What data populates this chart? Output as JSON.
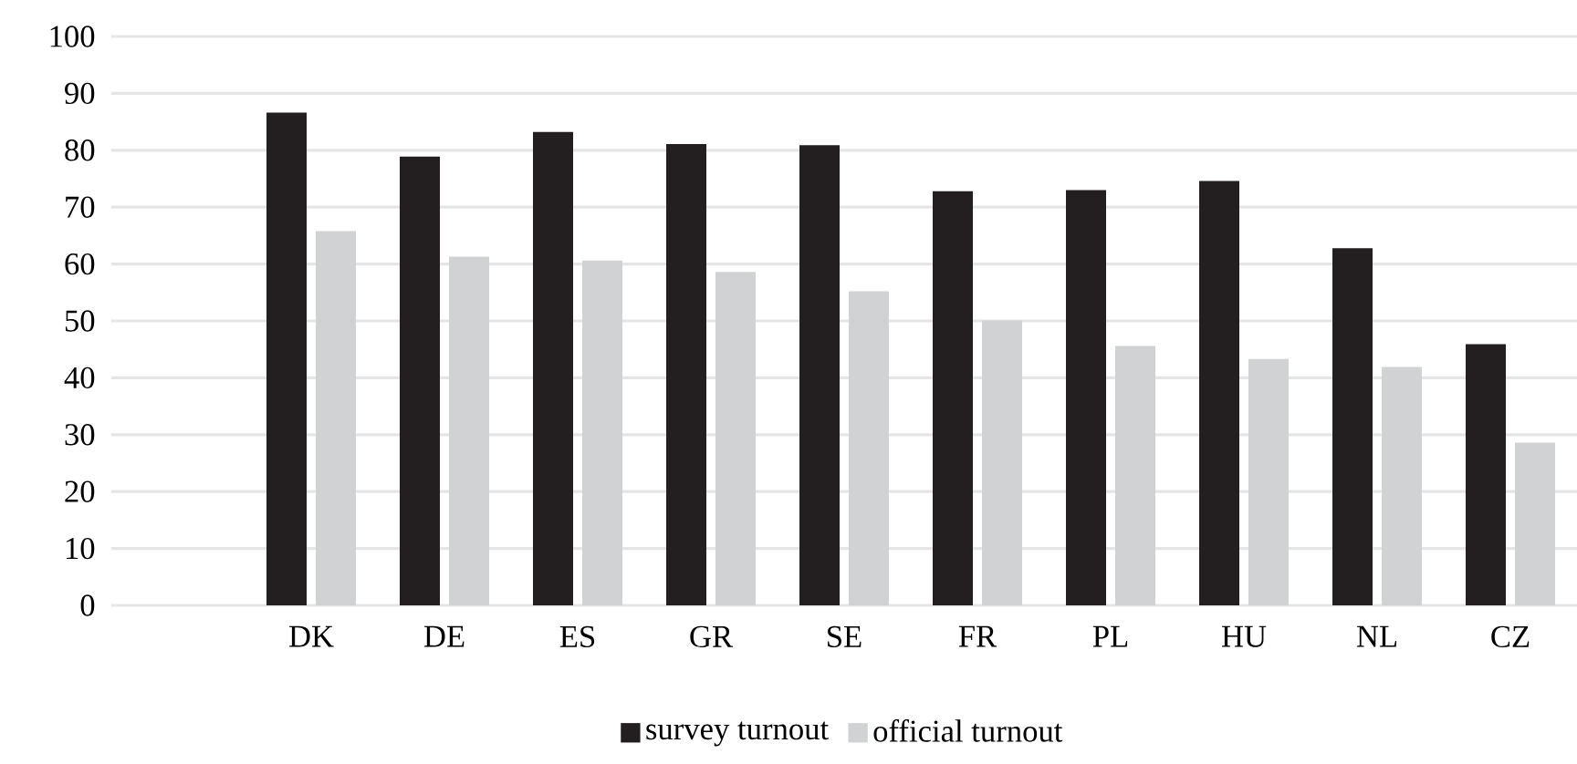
{
  "chart_data": {
    "type": "bar",
    "categories": [
      null,
      "DK",
      "DE",
      "ES",
      "GR",
      "SE",
      "FR",
      "PL",
      "HU",
      "NL",
      "CZ"
    ],
    "series": [
      {
        "name": "survey turnout",
        "color": "#231f20",
        "values": [
          null,
          86.6,
          78.9,
          83.2,
          81.1,
          80.9,
          72.8,
          73.0,
          74.6,
          62.8,
          45.9
        ]
      },
      {
        "name": "official turnout",
        "color": "#d1d2d4",
        "values": [
          null,
          65.8,
          61.3,
          60.6,
          58.6,
          55.2,
          50.1,
          45.6,
          43.3,
          41.9,
          28.6
        ]
      }
    ],
    "ylim": [
      0,
      100
    ],
    "yticks": [
      0,
      10,
      20,
      30,
      40,
      50,
      60,
      70,
      80,
      90,
      100
    ],
    "grid": "y",
    "legend": "bottom"
  }
}
